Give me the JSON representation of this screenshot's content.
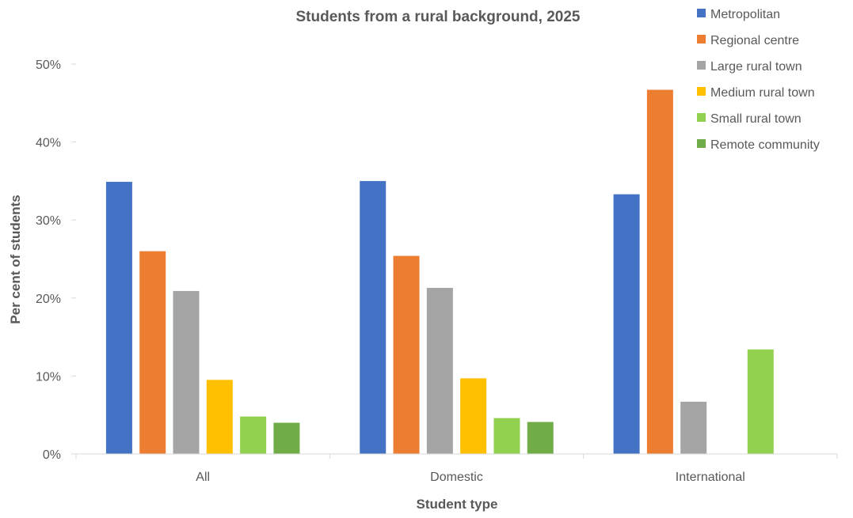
{
  "chart_data": {
    "type": "bar",
    "title": "Students from a rural background, 2025",
    "xlabel": "Student type",
    "ylabel": "Per cent of students",
    "categories": [
      "All",
      "Domestic",
      "International"
    ],
    "ylim": [
      0,
      50
    ],
    "yticks": [
      0,
      10,
      20,
      30,
      40,
      50
    ],
    "ytick_labels": [
      "0%",
      "10%",
      "20%",
      "30%",
      "40%",
      "50%"
    ],
    "grid": false,
    "legend_position": "top-right",
    "series": [
      {
        "name": "Metropolitan",
        "color": "#4472C4",
        "values": [
          34.9,
          35.0,
          33.3
        ]
      },
      {
        "name": "Regional centre",
        "color": "#ED7D31",
        "values": [
          26.0,
          25.4,
          46.7
        ]
      },
      {
        "name": "Large rural town",
        "color": "#A5A5A5",
        "values": [
          20.9,
          21.3,
          6.7
        ]
      },
      {
        "name": "Medium rural town",
        "color": "#FFC000",
        "values": [
          9.5,
          9.7,
          0
        ]
      },
      {
        "name": "Small rural town",
        "color": "#92D050",
        "values": [
          4.8,
          4.6,
          13.4
        ]
      },
      {
        "name": "Remote community",
        "color": "#70AD47",
        "values": [
          4.0,
          4.1,
          0
        ]
      }
    ]
  }
}
